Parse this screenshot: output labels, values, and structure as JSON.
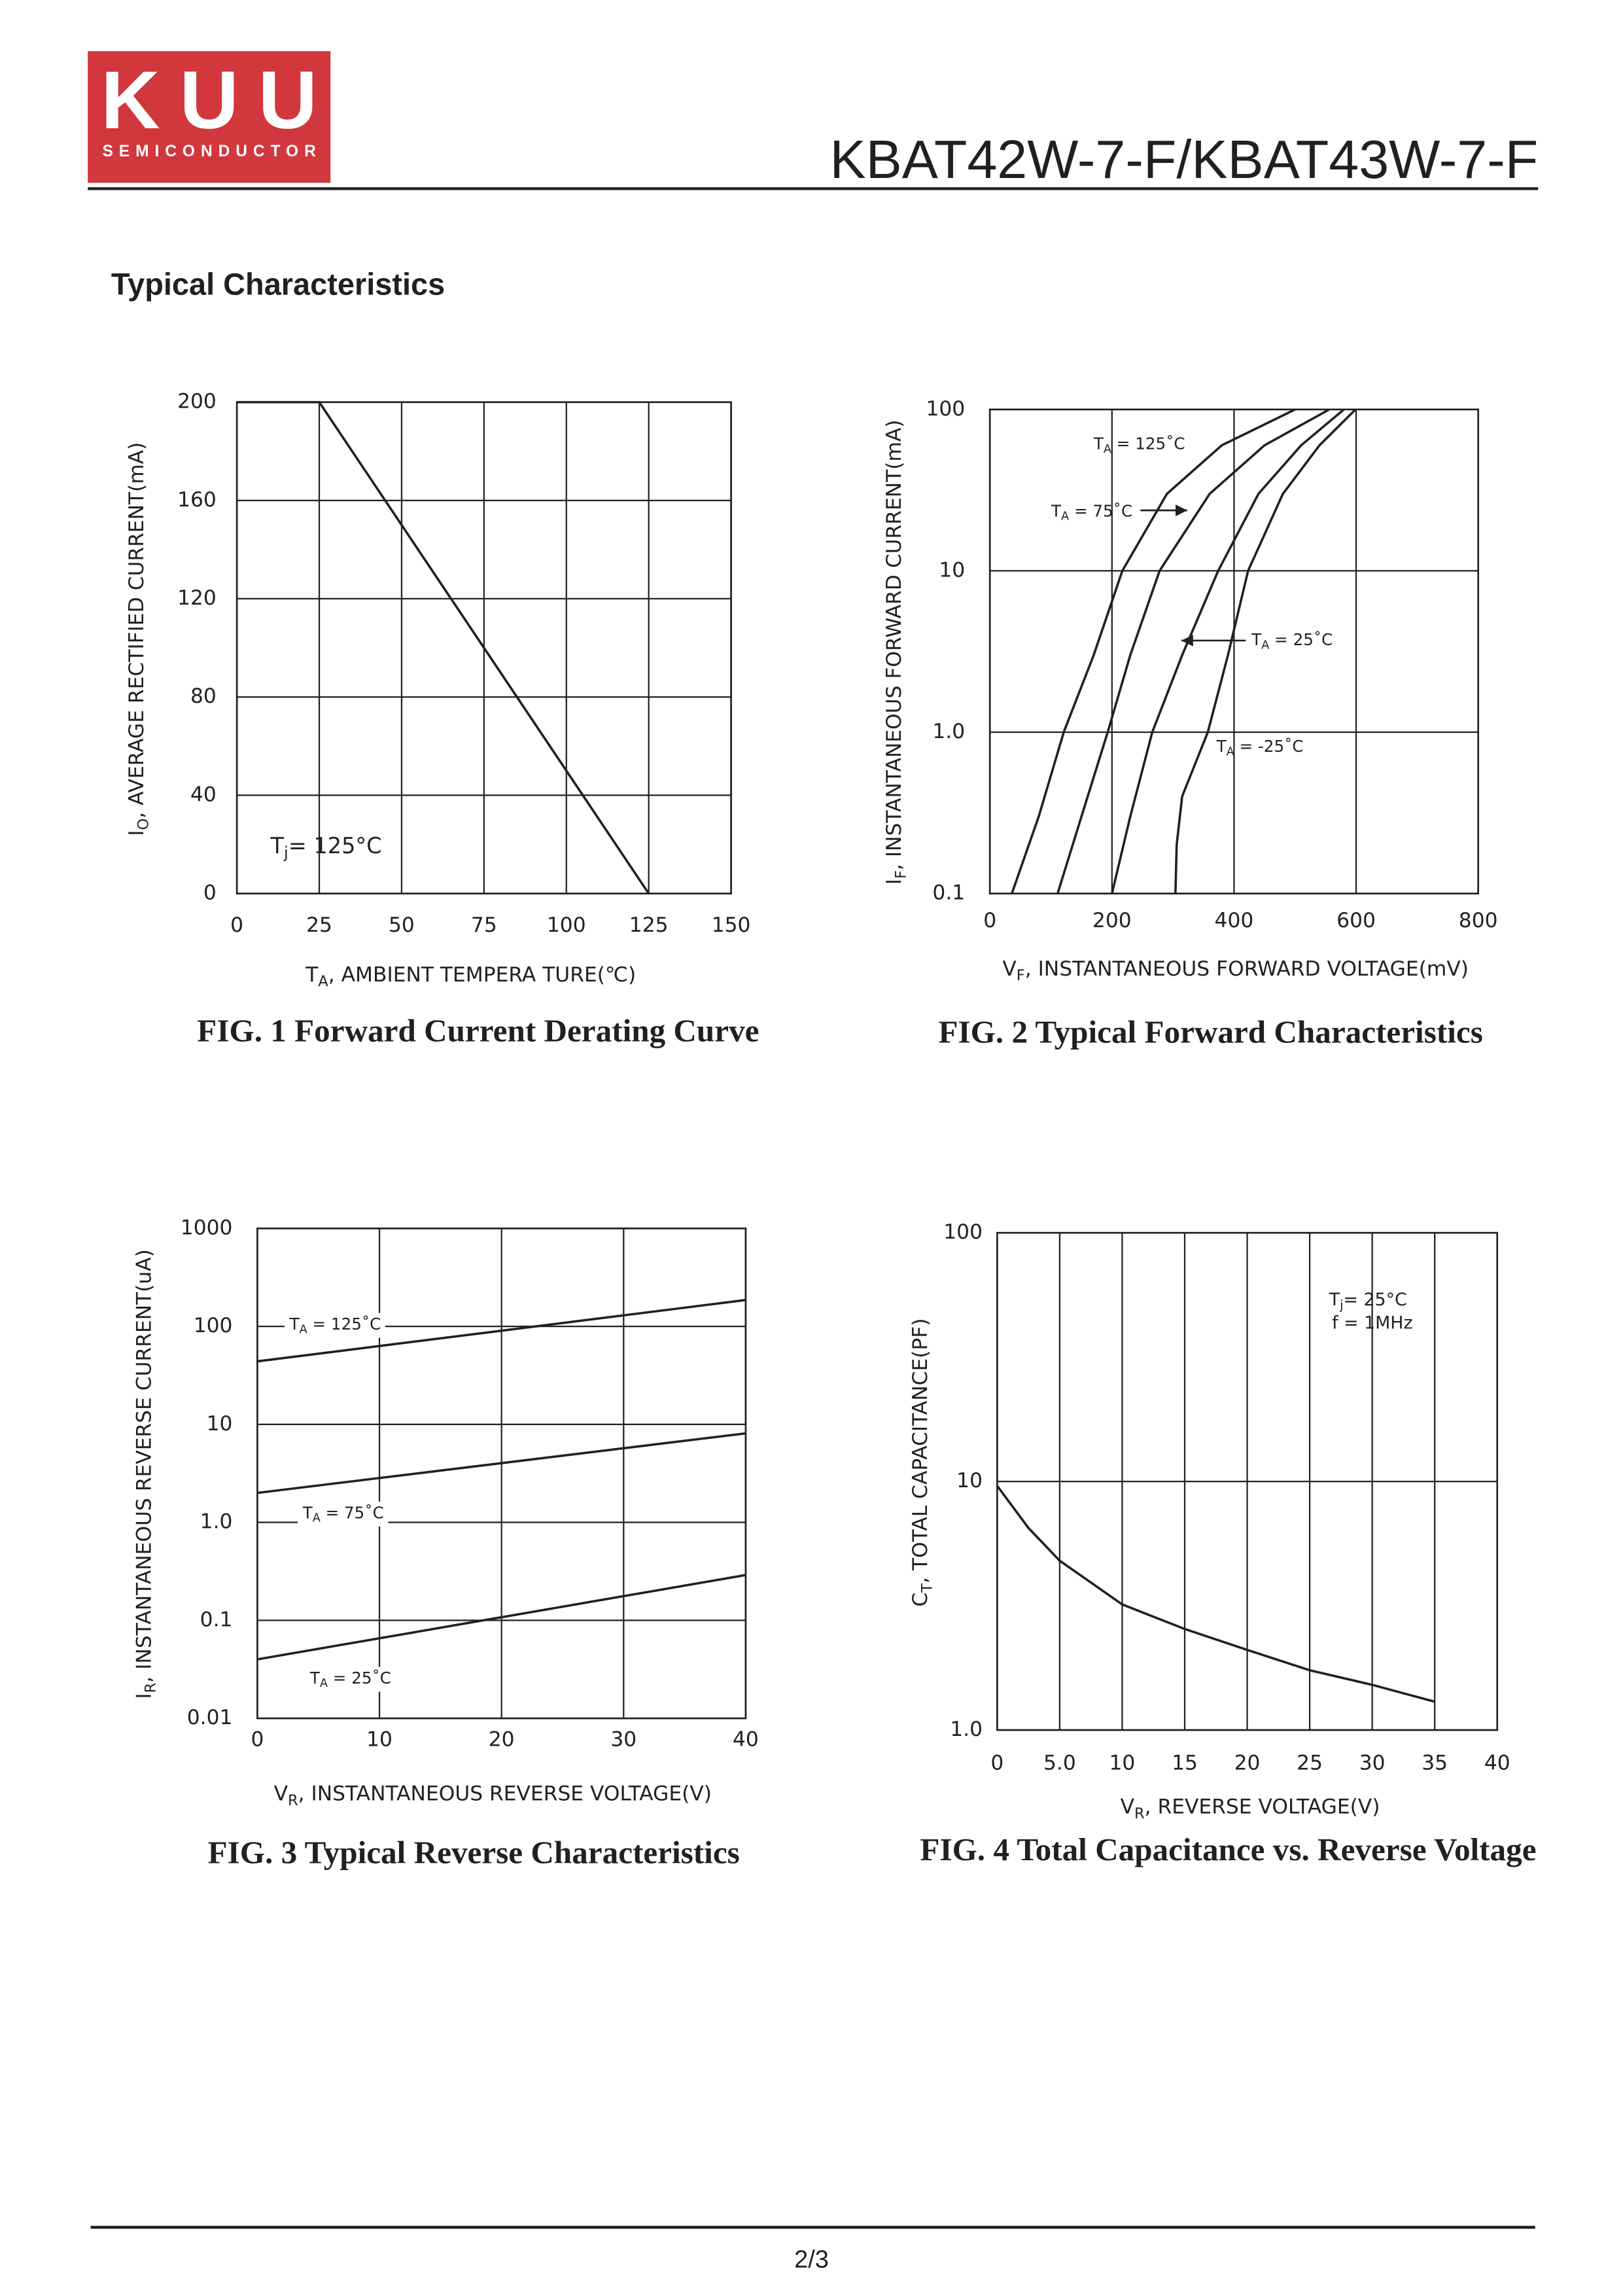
{
  "header": {
    "logo": "KUU",
    "logo_subtitle": "SEMICONDUCTOR",
    "title": "KBAT42W-7-F/KBAT43W-7-F"
  },
  "section_title": "Typical Characteristics",
  "chart_data": [
    {
      "type": "line",
      "title": "FIG. 1 Forward Current Derating Curve",
      "x_label": {
        "main": "T",
        "sub": "A",
        "text": ", AMBIENT  TEMPERA TURE(℃)"
      },
      "y_label": {
        "main": "I",
        "sub": "O",
        "text": ", AVERAGE RECTIFIED CURRENT(mA)"
      },
      "xlim": [
        0,
        150
      ],
      "xticks": [
        0,
        25,
        50,
        75,
        100,
        125,
        150
      ],
      "ylim": [
        0,
        200
      ],
      "yticks": [
        0,
        40,
        80,
        120,
        160,
        200
      ],
      "grid": true,
      "log_y": false,
      "color": "#231f20",
      "series": [
        {
          "x": [
            0,
            25,
            125
          ],
          "values": [
            200,
            200,
            0
          ]
        }
      ],
      "annotations": [
        {
          "main": "T",
          "sub": "j",
          "text": "= 125°C"
        }
      ]
    },
    {
      "type": "line",
      "title": "FIG. 2 Typical Forward Characteristics",
      "x_label": {
        "main": "V",
        "sub": "F",
        "text": ", INSTANTANEOUS  FORWARD  VOLTAGE(mV)"
      },
      "y_label": {
        "main": "I",
        "sub": "F",
        "text": ", INSTANTANEOUS  FORWARD  CURRENT(mA)"
      },
      "xlim": [
        0,
        800
      ],
      "xticks": [
        0,
        200,
        400,
        600,
        800
      ],
      "ylim": [
        0.1,
        100
      ],
      "yticks": [
        0.1,
        {
          "value": 1,
          "label": "1.0"
        },
        10,
        100
      ],
      "grid": true,
      "log_y": true,
      "color": "#231f20",
      "series": [
        {
          "label": {
            "main": "T",
            "sub": "A",
            "text": " = 125˚C"
          },
          "x": [
            36,
            80,
            121,
            170,
            217,
            290,
            380,
            500
          ],
          "values": [
            0.1,
            0.3,
            1,
            3,
            10,
            30,
            60,
            100
          ]
        },
        {
          "label": {
            "main": "T",
            "sub": "A",
            "text": " = 75˚C"
          },
          "x": [
            111,
            150,
            193,
            230,
            278,
            360,
            450,
            556
          ],
          "values": [
            0.1,
            0.3,
            1,
            3,
            10,
            30,
            60,
            100
          ]
        },
        {
          "label": {
            "main": "T",
            "sub": "A",
            "text": " = 25˚C"
          },
          "x": [
            200,
            230,
            266,
            315,
            374,
            440,
            510,
            580
          ],
          "values": [
            0.1,
            0.3,
            1,
            3,
            10,
            30,
            60,
            100
          ]
        },
        {
          "label": {
            "main": "T",
            "sub": "A",
            "text": " = -25˚C"
          },
          "x": [
            304,
            306,
            315,
            357,
            390,
            423,
            480,
            540,
            599
          ],
          "values": [
            0.1,
            0.2,
            0.4,
            1,
            3,
            10,
            30,
            60,
            100
          ]
        }
      ]
    },
    {
      "type": "line",
      "title": "FIG. 3 Typical Reverse Characteristics",
      "x_label": {
        "main": "V",
        "sub": "R",
        "text": ", INSTANTANEOUS  REVERSE  VOLTAGE(V)"
      },
      "y_label": {
        "main": "I",
        "sub": "R",
        "text": ", INSTANTANEOUS    REVERSE    CURRENT(uA)"
      },
      "xlim": [
        0,
        40
      ],
      "xticks": [
        0,
        10,
        20,
        30,
        40
      ],
      "ylim": [
        0.01,
        1000
      ],
      "yticks": [
        0.01,
        0.1,
        {
          "value": 1,
          "label": "1.0"
        },
        10,
        100,
        1000
      ],
      "grid": true,
      "log_y": true,
      "color": "#231f20",
      "series": [
        {
          "label": {
            "main": "T",
            "sub": "A",
            "text": " = 125˚C"
          },
          "x": [
            0,
            40
          ],
          "values": [
            44,
            186
          ]
        },
        {
          "label": {
            "main": "T",
            "sub": "A",
            "text": " = 75˚C"
          },
          "x": [
            0,
            40
          ],
          "values": [
            2.0,
            8.1
          ]
        },
        {
          "label": {
            "main": "T",
            "sub": "A",
            "text": " = 25˚C"
          },
          "x": [
            0,
            40
          ],
          "values": [
            0.04,
            0.29
          ]
        }
      ]
    },
    {
      "type": "line",
      "title": "FIG. 4 Total Capacitance vs. Reverse Voltage",
      "x_label": {
        "main": "V",
        "sub": "R",
        "text": ", REVERSE  VOLTAGE(V)"
      },
      "y_label": {
        "main": "C",
        "sub": "T",
        "text": ", TOTAL  CAPACITANCE(PF)"
      },
      "xlim": [
        0,
        40
      ],
      "xticks": [
        0,
        {
          "value": 5,
          "label": "5.0"
        },
        10,
        15,
        20,
        25,
        30,
        35,
        40
      ],
      "ylim": [
        1,
        100
      ],
      "yticks": [
        {
          "value": 1,
          "label": "1.0"
        },
        10,
        100
      ],
      "grid": true,
      "log_y": true,
      "color": "#231f20",
      "series": [
        {
          "x": [
            0,
            2.5,
            5,
            10,
            15,
            20,
            25,
            30,
            35
          ],
          "values": [
            9.6,
            6.5,
            4.8,
            3.2,
            2.55,
            2.1,
            1.74,
            1.52,
            1.3
          ]
        }
      ],
      "annotations": [
        {
          "main": "T",
          "sub": "j",
          "text": "= 25°C"
        },
        {
          "text": "f = 1MHz"
        }
      ]
    }
  ],
  "footer": {
    "page": "2/3"
  }
}
